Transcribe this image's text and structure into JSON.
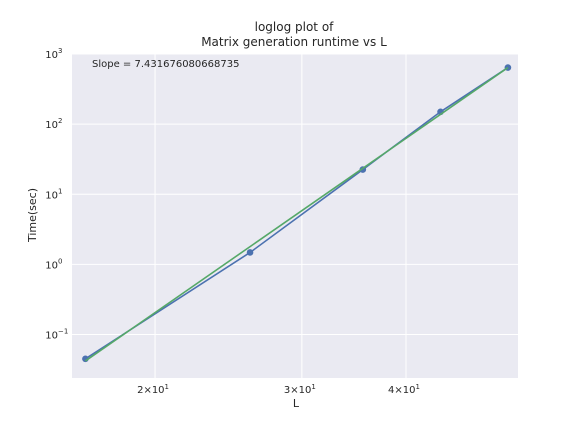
{
  "chart_data": {
    "type": "line",
    "title_line1": "loglog plot of",
    "title_line2": "Matrix generation runtime vs L",
    "xlabel": "L",
    "ylabel": "Time(sec)",
    "xscale": "log",
    "yscale": "log",
    "xlim": [
      15.9,
      54.5
    ],
    "ylim": [
      0.024,
      1000
    ],
    "grid": true,
    "annotation": "Slope = 7.431676080668735",
    "x_ticks": [
      {
        "value": 20,
        "label": "2×10",
        "exp": "1"
      },
      {
        "value": 30,
        "label": "3×10",
        "exp": "1"
      },
      {
        "value": 40,
        "label": "4×10",
        "exp": "1"
      }
    ],
    "y_ticks": [
      {
        "value": 0.1,
        "label": "10",
        "exp": "−1"
      },
      {
        "value": 1,
        "label": "10",
        "exp": "0"
      },
      {
        "value": 10,
        "label": "10",
        "exp": "1"
      },
      {
        "value": 100,
        "label": "10",
        "exp": "2"
      },
      {
        "value": 1000,
        "label": "10",
        "exp": "3"
      }
    ],
    "series": [
      {
        "color": "#4c72b0",
        "markers": true,
        "x": [
          16.5,
          26.0,
          35.5,
          44.0,
          53.0
        ],
        "y": [
          0.045,
          1.48,
          22.5,
          150,
          640
        ]
      },
      {
        "color": "#55a868",
        "markers": false,
        "x": [
          16.5,
          53.0
        ],
        "y": [
          0.042,
          640
        ]
      }
    ],
    "background": "#eaeaf2",
    "grid_color": "#ffffff"
  }
}
